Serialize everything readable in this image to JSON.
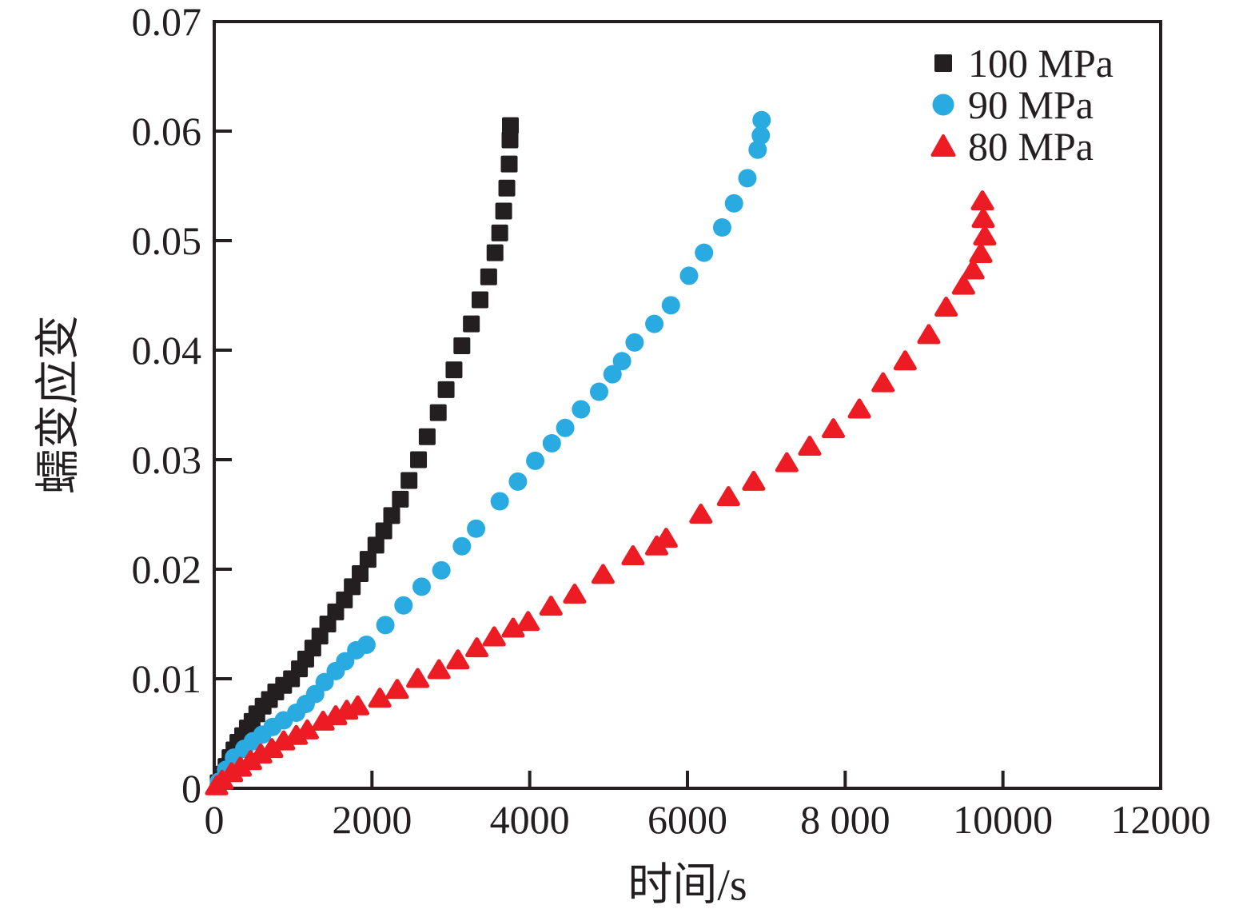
{
  "figure": {
    "background": "#ffffff",
    "axis_color": "#231f20",
    "tick_direction": "in"
  },
  "chart_data": {
    "type": "scatter",
    "title": "",
    "xlabel": "时间/s",
    "ylabel": "蠕变应变",
    "xlim": [
      0,
      12000
    ],
    "ylim": [
      0,
      0.07
    ],
    "grid": false,
    "legend_position": "top-right-inside",
    "x_ticks": [
      {
        "value": 0,
        "label": "0"
      },
      {
        "value": 2000,
        "label": "2000"
      },
      {
        "value": 4000,
        "label": "4000"
      },
      {
        "value": 6000,
        "label": "6000"
      },
      {
        "value": 8000,
        "label": "8 000"
      },
      {
        "value": 10000,
        "label": "10000"
      },
      {
        "value": 12000,
        "label": "12000"
      }
    ],
    "y_ticks": [
      {
        "value": 0,
        "label": "0"
      },
      {
        "value": 0.01,
        "label": "0.01"
      },
      {
        "value": 0.02,
        "label": "0.02"
      },
      {
        "value": 0.03,
        "label": "0.03"
      },
      {
        "value": 0.04,
        "label": "0.04"
      },
      {
        "value": 0.05,
        "label": "0.05"
      },
      {
        "value": 0.06,
        "label": "0.06"
      },
      {
        "value": 0.07,
        "label": "0.07"
      }
    ],
    "series": [
      {
        "name": "100 MPa",
        "marker": "square",
        "color": "#231f20",
        "points": [
          [
            50,
            0.0005
          ],
          [
            100,
            0.0013
          ],
          [
            150,
            0.002
          ],
          [
            200,
            0.0028
          ],
          [
            250,
            0.0035
          ],
          [
            300,
            0.0042
          ],
          [
            360,
            0.0048
          ],
          [
            420,
            0.0055
          ],
          [
            480,
            0.0061
          ],
          [
            540,
            0.0068
          ],
          [
            620,
            0.0075
          ],
          [
            700,
            0.0081
          ],
          [
            780,
            0.0088
          ],
          [
            880,
            0.0094
          ],
          [
            980,
            0.01
          ],
          [
            1080,
            0.0109
          ],
          [
            1160,
            0.0118
          ],
          [
            1250,
            0.0128
          ],
          [
            1340,
            0.0139
          ],
          [
            1440,
            0.015
          ],
          [
            1540,
            0.0161
          ],
          [
            1650,
            0.0172
          ],
          [
            1750,
            0.0184
          ],
          [
            1850,
            0.0196
          ],
          [
            1950,
            0.0209
          ],
          [
            2050,
            0.0222
          ],
          [
            2150,
            0.0235
          ],
          [
            2250,
            0.0249
          ],
          [
            2360,
            0.0264
          ],
          [
            2470,
            0.0281
          ],
          [
            2590,
            0.03
          ],
          [
            2700,
            0.0321
          ],
          [
            2840,
            0.0343
          ],
          [
            2940,
            0.0364
          ],
          [
            3040,
            0.0382
          ],
          [
            3140,
            0.0404
          ],
          [
            3260,
            0.0424
          ],
          [
            3370,
            0.0446
          ],
          [
            3480,
            0.0467
          ],
          [
            3560,
            0.0489
          ],
          [
            3620,
            0.0507
          ],
          [
            3670,
            0.0527
          ],
          [
            3710,
            0.0548
          ],
          [
            3740,
            0.057
          ],
          [
            3750,
            0.0592
          ],
          [
            3755,
            0.0605
          ]
        ]
      },
      {
        "name": "90 MPa",
        "marker": "circle",
        "color": "#29abe2",
        "points": [
          [
            60,
            0.0006
          ],
          [
            150,
            0.0017
          ],
          [
            250,
            0.0028
          ],
          [
            380,
            0.0036
          ],
          [
            490,
            0.0043
          ],
          [
            610,
            0.0049
          ],
          [
            740,
            0.0056
          ],
          [
            880,
            0.0062
          ],
          [
            1040,
            0.0069
          ],
          [
            1160,
            0.0077
          ],
          [
            1280,
            0.0086
          ],
          [
            1400,
            0.0097
          ],
          [
            1540,
            0.0107
          ],
          [
            1660,
            0.0116
          ],
          [
            1800,
            0.0126
          ],
          [
            1930,
            0.0131
          ],
          [
            2170,
            0.0149
          ],
          [
            2400,
            0.0167
          ],
          [
            2630,
            0.0184
          ],
          [
            2880,
            0.0199
          ],
          [
            3140,
            0.0221
          ],
          [
            3320,
            0.0237
          ],
          [
            3620,
            0.0262
          ],
          [
            3850,
            0.028
          ],
          [
            4070,
            0.0299
          ],
          [
            4280,
            0.0315
          ],
          [
            4450,
            0.0329
          ],
          [
            4650,
            0.0346
          ],
          [
            4880,
            0.0362
          ],
          [
            5050,
            0.0378
          ],
          [
            5170,
            0.039
          ],
          [
            5330,
            0.0407
          ],
          [
            5580,
            0.0424
          ],
          [
            5790,
            0.0441
          ],
          [
            6020,
            0.0468
          ],
          [
            6210,
            0.0489
          ],
          [
            6440,
            0.0512
          ],
          [
            6590,
            0.0534
          ],
          [
            6760,
            0.0557
          ],
          [
            6890,
            0.0583
          ],
          [
            6930,
            0.0596
          ],
          [
            6940,
            0.061
          ]
        ]
      },
      {
        "name": "80 MPa",
        "marker": "triangle",
        "color": "#ed1c24",
        "points": [
          [
            30,
            0.0002
          ],
          [
            100,
            0.0007
          ],
          [
            220,
            0.0014
          ],
          [
            330,
            0.0019
          ],
          [
            460,
            0.0025
          ],
          [
            590,
            0.0031
          ],
          [
            730,
            0.0036
          ],
          [
            880,
            0.0043
          ],
          [
            1040,
            0.0048
          ],
          [
            1180,
            0.0053
          ],
          [
            1380,
            0.0061
          ],
          [
            1540,
            0.0066
          ],
          [
            1680,
            0.0071
          ],
          [
            1820,
            0.0075
          ],
          [
            2100,
            0.0082
          ],
          [
            2320,
            0.009
          ],
          [
            2580,
            0.01
          ],
          [
            2850,
            0.0108
          ],
          [
            3090,
            0.0117
          ],
          [
            3330,
            0.0128
          ],
          [
            3550,
            0.0138
          ],
          [
            3790,
            0.0146
          ],
          [
            3980,
            0.0152
          ],
          [
            4270,
            0.0166
          ],
          [
            4570,
            0.0177
          ],
          [
            4930,
            0.0195
          ],
          [
            5310,
            0.0212
          ],
          [
            5610,
            0.0221
          ],
          [
            5730,
            0.0228
          ],
          [
            6170,
            0.025
          ],
          [
            6520,
            0.0266
          ],
          [
            6840,
            0.028
          ],
          [
            7260,
            0.0297
          ],
          [
            7550,
            0.0312
          ],
          [
            7850,
            0.0328
          ],
          [
            8180,
            0.0346
          ],
          [
            8480,
            0.037
          ],
          [
            8760,
            0.039
          ],
          [
            9060,
            0.0414
          ],
          [
            9280,
            0.0439
          ],
          [
            9500,
            0.0459
          ],
          [
            9620,
            0.0473
          ],
          [
            9720,
            0.0488
          ],
          [
            9770,
            0.0504
          ],
          [
            9750,
            0.052
          ],
          [
            9740,
            0.0536
          ]
        ]
      }
    ]
  }
}
